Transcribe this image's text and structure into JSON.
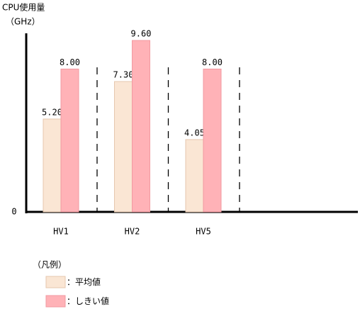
{
  "chart_data": {
    "type": "bar",
    "title": "CPU使用量",
    "y_unit": "（GHz）",
    "categories": [
      "HV1",
      "HV2",
      "HV5"
    ],
    "series": [
      {
        "name": "平均値",
        "color": "#fae6d4",
        "values": [
          5.2,
          7.3,
          4.05
        ],
        "value_labels": [
          "5.20",
          "7.30",
          "4.05"
        ]
      },
      {
        "name": "しきい値",
        "color": "#ffb2b7",
        "values": [
          8.0,
          9.6,
          8.0
        ],
        "value_labels": [
          "8.00",
          "9.60",
          "8.00"
        ]
      }
    ],
    "ylim": [
      0,
      10
    ],
    "yticks": [
      0
    ],
    "legend_title": "（凡例）",
    "legend_separator": "：",
    "grid": false
  }
}
